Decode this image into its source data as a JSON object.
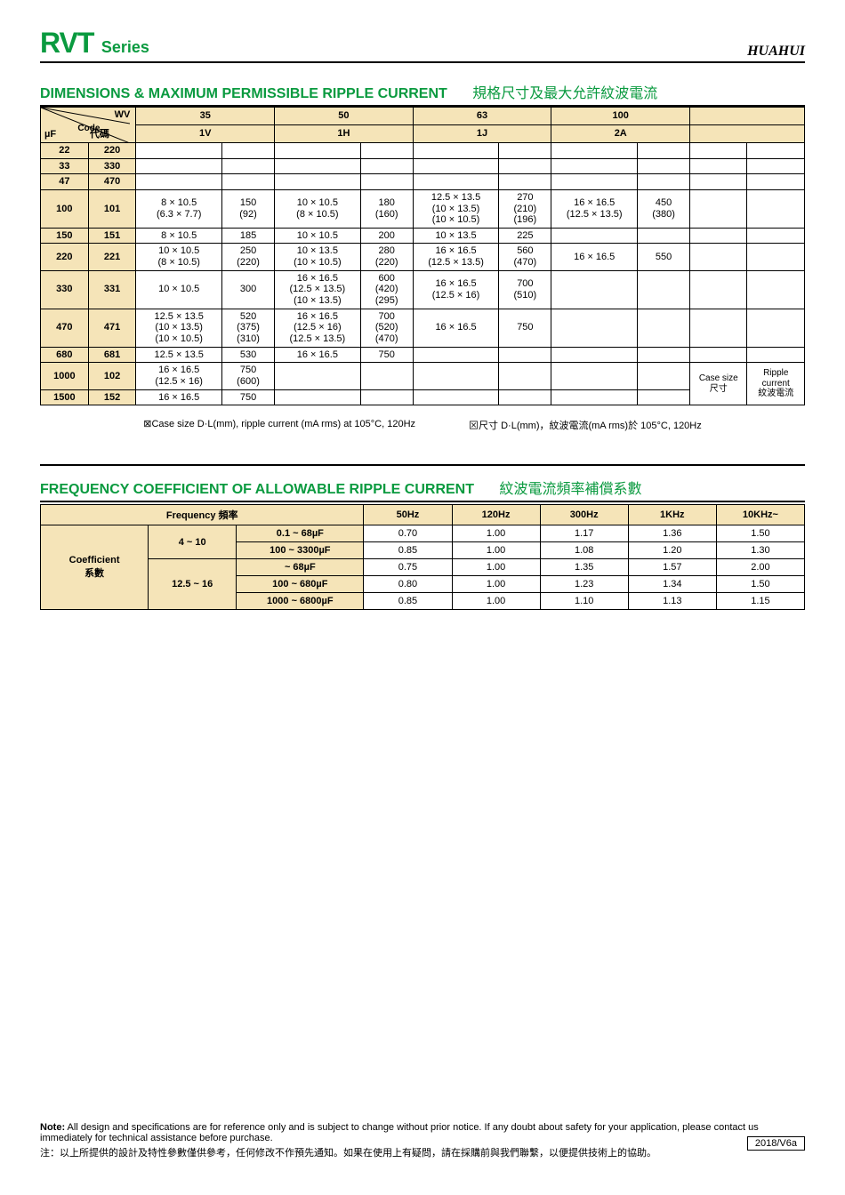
{
  "header": {
    "series_main": "RVT",
    "series_sub": "Series",
    "brand": "HUAHUI"
  },
  "section1": {
    "title_en": "DIMENSIONS & MAXIMUM PERMISSIBLE RIPPLE CURRENT",
    "title_cn": "規格尺寸及最大允許紋波電流",
    "diag": {
      "wv": "WV",
      "code": "Code",
      "uf": "µF",
      "cn": "代碼"
    },
    "voltages": [
      "35",
      "50",
      "63",
      "100",
      ""
    ],
    "codes": [
      "1V",
      "1H",
      "1J",
      "2A",
      ""
    ],
    "rowlabels": [
      {
        "uf": "22",
        "code": "220"
      },
      {
        "uf": "33",
        "code": "330"
      },
      {
        "uf": "47",
        "code": "470"
      },
      {
        "uf": "100",
        "code": "101"
      },
      {
        "uf": "150",
        "code": "151"
      },
      {
        "uf": "220",
        "code": "221"
      },
      {
        "uf": "330",
        "code": "331"
      },
      {
        "uf": "470",
        "code": "471"
      },
      {
        "uf": "680",
        "code": "681"
      },
      {
        "uf": "1000",
        "code": "102"
      },
      {
        "uf": "1500",
        "code": "152"
      }
    ],
    "cells": [
      [
        "",
        "",
        "",
        "",
        "",
        "",
        "",
        "",
        "",
        ""
      ],
      [
        "",
        "",
        "",
        "",
        "",
        "",
        "",
        "",
        "",
        ""
      ],
      [
        "",
        "",
        "",
        "",
        "",
        "",
        "",
        "",
        "",
        ""
      ],
      [
        "8 × 10.5\n(6.3 × 7.7)",
        "150\n(92)",
        "10 × 10.5\n(8 × 10.5)",
        "180\n(160)",
        "12.5 × 13.5\n(10 × 13.5)\n(10 × 10.5)",
        "270\n(210)\n(196)",
        "16 × 16.5\n(12.5 × 13.5)",
        "450\n(380)",
        "",
        ""
      ],
      [
        "8 × 10.5",
        "185",
        "10 × 10.5",
        "200",
        "10 × 13.5",
        "225",
        "",
        "",
        "",
        ""
      ],
      [
        "10 × 10.5\n(8 × 10.5)",
        "250\n(220)",
        "10 × 13.5\n(10 × 10.5)",
        "280\n(220)",
        "16 × 16.5\n(12.5 × 13.5)",
        "560\n(470)",
        "16 × 16.5",
        "550",
        "",
        ""
      ],
      [
        "10 × 10.5",
        "300",
        "16 × 16.5\n(12.5 × 13.5)\n(10 × 13.5)",
        "600\n(420)\n(295)",
        "16 × 16.5\n(12.5 × 16)",
        "700\n(510)",
        "",
        "",
        "",
        ""
      ],
      [
        "12.5 × 13.5\n(10 × 13.5)\n(10 × 10.5)",
        "520\n(375)\n(310)",
        "16 × 16.5\n(12.5 × 16)\n(12.5 × 13.5)",
        "700\n(520)\n(470)",
        "16 × 16.5",
        "750",
        "",
        "",
        "",
        ""
      ],
      [
        "12.5 × 13.5",
        "530",
        "16 × 16.5",
        "750",
        "",
        "",
        "",
        "",
        "",
        ""
      ],
      [
        "16 × 16.5\n(12.5 × 16)",
        "750\n(600)",
        "",
        "",
        "",
        "",
        "",
        "",
        "Case size\n尺寸",
        "Ripple\ncurrent\n紋波電流"
      ],
      [
        "16 × 16.5",
        "750",
        "",
        "",
        "",
        "",
        "",
        "",
        "",
        ""
      ]
    ],
    "footnote_l": "⊠Case size   D·L(mm), ripple current (mA rms) at 105°C, 120Hz",
    "footnote_r": "⊠尺寸        D·L(mm)，紋波電流(mA rms)於  105°C, 120Hz"
  },
  "section2": {
    "title_en": "FREQUENCY COEFFICIENT OF ALLOWABLE RIPPLE CURRENT",
    "title_cn": "紋波電流頻率補償系數",
    "freq_label": "Frequency 頻率",
    "freq_cols": [
      "50Hz",
      "120Hz",
      "300Hz",
      "1KHz",
      "10KHz~"
    ],
    "coef_label": "Coefficient\n系數",
    "groups": [
      {
        "v": "4 ~  10",
        "rows": [
          {
            "cap": "0.1 ~ 68µF",
            "vals": [
              "0.70",
              "1.00",
              "1.17",
              "1.36",
              "1.50"
            ]
          },
          {
            "cap": "100 ~ 3300µF",
            "vals": [
              "0.85",
              "1.00",
              "1.08",
              "1.20",
              "1.30"
            ]
          }
        ]
      },
      {
        "v": "12.5 ~  16",
        "rows": [
          {
            "cap": "~ 68µF",
            "vals": [
              "0.75",
              "1.00",
              "1.35",
              "1.57",
              "2.00"
            ]
          },
          {
            "cap": "100 ~ 680µF",
            "vals": [
              "0.80",
              "1.00",
              "1.23",
              "1.34",
              "1.50"
            ]
          },
          {
            "cap": "1000 ~ 6800µF",
            "vals": [
              "0.85",
              "1.00",
              "1.10",
              "1.13",
              "1.15"
            ]
          }
        ]
      }
    ]
  },
  "footer": {
    "note_label": "Note:",
    "note_en": " All design and specifications are for reference only and is subject to change without prior notice. If any doubt about safety for your application, please contact us immediately for technical assistance before purchase.",
    "note_cn": "注：以上所提供的設計及特性參數僅供參考，任何修改不作預先通知。如果在使用上有疑問，請在採購前與我們聯繫，以便提供技術上的協助。",
    "version": "2018/V6a"
  },
  "colors": {
    "green": "#0a9a3f",
    "header_bg": "#f5e4b8"
  }
}
